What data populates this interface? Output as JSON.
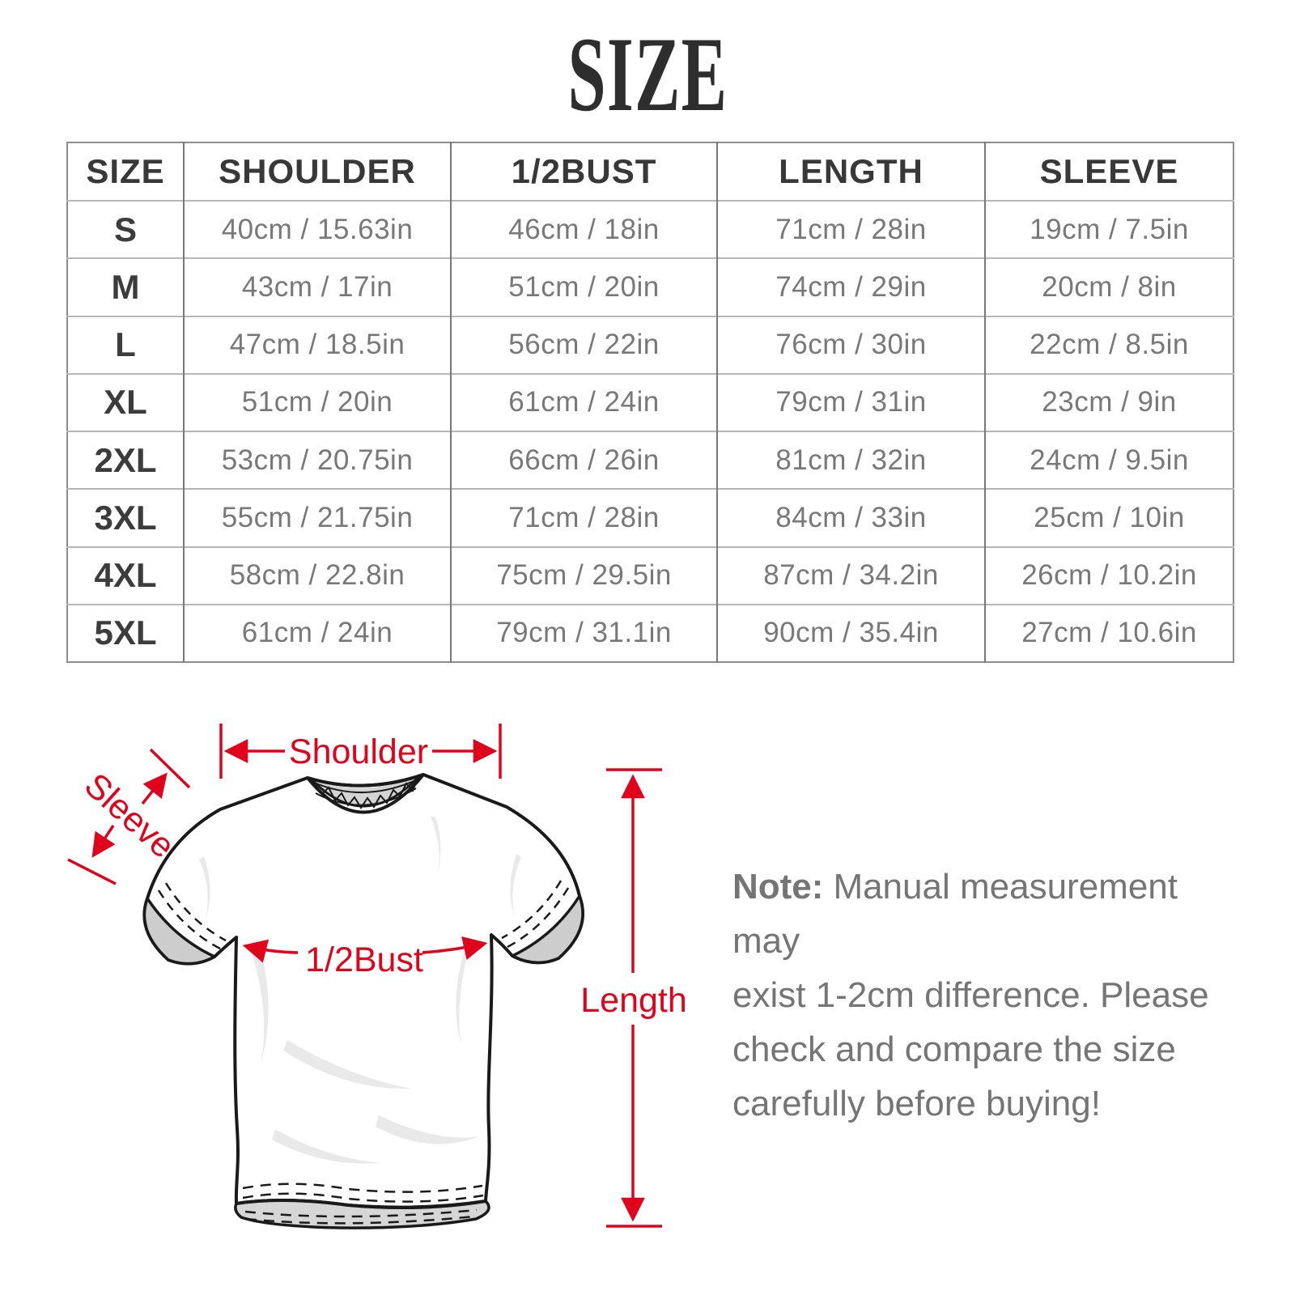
{
  "title": "SIZE",
  "size_table": {
    "headers": [
      "SIZE",
      "SHOULDER",
      "1/2BUST",
      "LENGTH",
      "SLEEVE"
    ],
    "rows": [
      [
        "S",
        "40cm / 15.63in",
        "46cm / 18in",
        "71cm / 28in",
        "19cm / 7.5in"
      ],
      [
        "M",
        "43cm / 17in",
        "51cm / 20in",
        "74cm / 29in",
        "20cm / 8in"
      ],
      [
        "L",
        "47cm / 18.5in",
        "56cm / 22in",
        "76cm / 30in",
        "22cm / 8.5in"
      ],
      [
        "XL",
        "51cm / 20in",
        "61cm / 24in",
        "79cm / 31in",
        "23cm / 9in"
      ],
      [
        "2XL",
        "53cm / 20.75in",
        "66cm / 26in",
        "81cm / 32in",
        "24cm / 9.5in"
      ],
      [
        "3XL",
        "55cm / 21.75in",
        "71cm / 28in",
        "84cm / 33in",
        "25cm / 10in"
      ],
      [
        "4XL",
        "58cm / 22.8in",
        "75cm / 29.5in",
        "87cm / 34.2in",
        "26cm / 10.2in"
      ],
      [
        "5XL",
        "61cm / 24in",
        "79cm / 31.1in",
        "90cm / 35.4in",
        "27cm / 10.6in"
      ]
    ]
  },
  "diagram": {
    "labels": {
      "shoulder": "Shoulder",
      "sleeve": "Sleeve",
      "half_bust": "1/2Bust",
      "length": "Length"
    }
  },
  "note": {
    "label": "Note:",
    "lines": [
      "Manual measurement may",
      "exist 1-2cm difference. Please",
      "check and compare the size",
      "carefully before buying!"
    ]
  },
  "colors": {
    "annotation_red": "#e0031c",
    "note_gray": "#757575",
    "outline_black": "#1a1a1a"
  }
}
